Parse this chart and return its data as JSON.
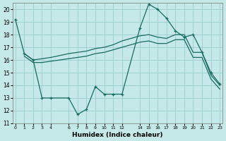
{
  "xlabel": "Humidex (Indice chaleur)",
  "bg_color": "#c5e8e8",
  "grid_color": "#99cccc",
  "line_color": "#1a6b60",
  "xlim": [
    -0.3,
    23.3
  ],
  "ylim": [
    11,
    20.5
  ],
  "yticks": [
    11,
    12,
    13,
    14,
    15,
    16,
    17,
    18,
    19,
    20
  ],
  "xticks": [
    0,
    1,
    2,
    3,
    4,
    6,
    7,
    8,
    9,
    10,
    11,
    12,
    14,
    15,
    16,
    17,
    18,
    19,
    20,
    21,
    22,
    23
  ],
  "jagged_x": [
    0,
    1,
    2,
    3,
    4,
    6,
    7,
    8,
    9,
    10,
    11,
    12,
    14,
    15,
    16,
    17,
    18,
    19,
    20,
    21,
    22,
    23
  ],
  "jagged_y": [
    19.2,
    16.5,
    16.0,
    13.0,
    13.0,
    13.0,
    11.7,
    12.1,
    13.9,
    13.3,
    13.3,
    13.3,
    18.5,
    20.4,
    20.0,
    19.3,
    18.3,
    17.8,
    18.0,
    16.6,
    15.0,
    14.1
  ],
  "mid_x": [
    1,
    2,
    3,
    4,
    6,
    7,
    8,
    9,
    10,
    11,
    12,
    14,
    15,
    16,
    17,
    18,
    19,
    20,
    21,
    22,
    23
  ],
  "mid_y": [
    16.5,
    16.0,
    16.1,
    16.2,
    16.5,
    16.6,
    16.7,
    16.9,
    17.0,
    17.2,
    17.5,
    17.9,
    18.0,
    17.8,
    17.7,
    18.0,
    18.0,
    16.6,
    16.6,
    14.8,
    14.0
  ],
  "low_x": [
    1,
    2,
    3,
    4,
    6,
    7,
    8,
    9,
    10,
    11,
    12,
    14,
    15,
    16,
    17,
    18,
    19,
    20,
    21,
    22,
    23
  ],
  "low_y": [
    16.3,
    15.8,
    15.8,
    15.9,
    16.1,
    16.2,
    16.3,
    16.5,
    16.6,
    16.8,
    17.0,
    17.4,
    17.5,
    17.3,
    17.3,
    17.6,
    17.6,
    16.2,
    16.2,
    14.5,
    13.7
  ]
}
